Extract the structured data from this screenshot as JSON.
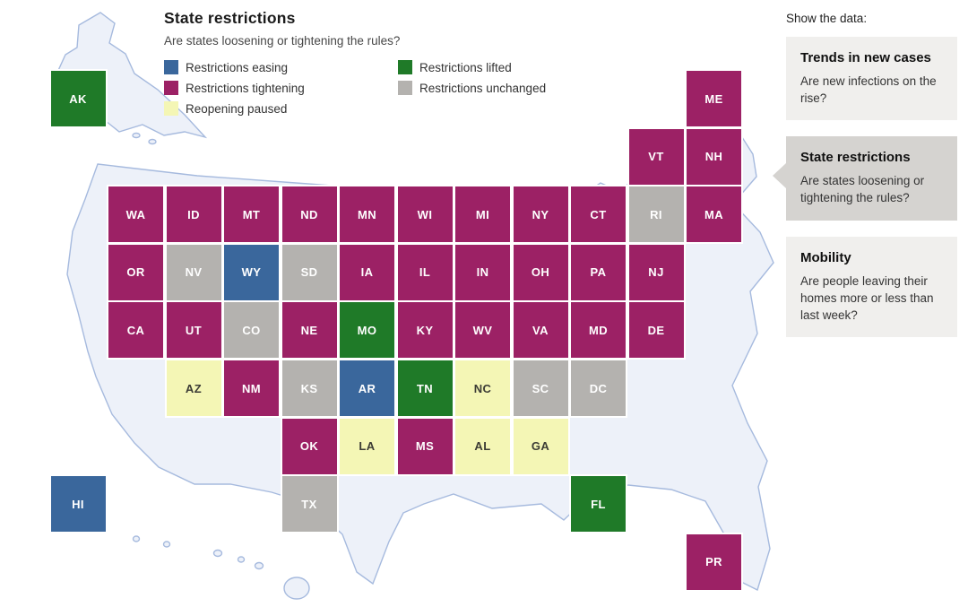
{
  "header": {
    "title": "State restrictions",
    "subtitle": "Are states loosening or tightening the rules?"
  },
  "legend": {
    "items": [
      {
        "key": "easing",
        "label": "Restrictions easing"
      },
      {
        "key": "tightening",
        "label": "Restrictions tightening"
      },
      {
        "key": "paused",
        "label": "Reopening paused"
      },
      {
        "key": "lifted",
        "label": "Restrictions lifted"
      },
      {
        "key": "unchanged",
        "label": "Restrictions unchanged"
      }
    ]
  },
  "colors": {
    "easing": "#3a679c",
    "tightening": "#9c2165",
    "paused": "#f4f6b5",
    "lifted": "#1f7a28",
    "unchanged": "#b4b2af",
    "map_fill": "#edf1f9",
    "map_stroke": "#a6bade",
    "card_bg": "#f0efed",
    "card_selected_bg": "#d5d3d0"
  },
  "sidebar": {
    "label": "Show the data:",
    "cards": [
      {
        "title": "Trends in new cases",
        "body": "Are new infections on the rise?",
        "selected": false
      },
      {
        "title": "State restrictions",
        "body": "Are states loosening or tightening the rules?",
        "selected": true
      },
      {
        "title": "Mobility",
        "body": "Are people leaving their homes more or less than last week?",
        "selected": false
      }
    ]
  },
  "map": {
    "tiles": [
      {
        "abbr": "AK",
        "row": 0,
        "col": -1,
        "status": "lifted"
      },
      {
        "abbr": "ME",
        "row": 0,
        "col": 10,
        "status": "tightening"
      },
      {
        "abbr": "VT",
        "row": 1,
        "col": 9,
        "status": "tightening"
      },
      {
        "abbr": "NH",
        "row": 1,
        "col": 10,
        "status": "tightening"
      },
      {
        "abbr": "WA",
        "row": 2,
        "col": 0,
        "status": "tightening"
      },
      {
        "abbr": "ID",
        "row": 2,
        "col": 1,
        "status": "tightening"
      },
      {
        "abbr": "MT",
        "row": 2,
        "col": 2,
        "status": "tightening"
      },
      {
        "abbr": "ND",
        "row": 2,
        "col": 3,
        "status": "tightening"
      },
      {
        "abbr": "MN",
        "row": 2,
        "col": 4,
        "status": "tightening"
      },
      {
        "abbr": "WI",
        "row": 2,
        "col": 5,
        "status": "tightening"
      },
      {
        "abbr": "MI",
        "row": 2,
        "col": 6,
        "status": "tightening"
      },
      {
        "abbr": "NY",
        "row": 2,
        "col": 7,
        "status": "tightening"
      },
      {
        "abbr": "CT",
        "row": 2,
        "col": 8,
        "status": "tightening"
      },
      {
        "abbr": "RI",
        "row": 2,
        "col": 9,
        "status": "unchanged"
      },
      {
        "abbr": "MA",
        "row": 2,
        "col": 10,
        "status": "tightening"
      },
      {
        "abbr": "OR",
        "row": 3,
        "col": 0,
        "status": "tightening"
      },
      {
        "abbr": "NV",
        "row": 3,
        "col": 1,
        "status": "unchanged"
      },
      {
        "abbr": "WY",
        "row": 3,
        "col": 2,
        "status": "easing"
      },
      {
        "abbr": "SD",
        "row": 3,
        "col": 3,
        "status": "unchanged"
      },
      {
        "abbr": "IA",
        "row": 3,
        "col": 4,
        "status": "tightening"
      },
      {
        "abbr": "IL",
        "row": 3,
        "col": 5,
        "status": "tightening"
      },
      {
        "abbr": "IN",
        "row": 3,
        "col": 6,
        "status": "tightening"
      },
      {
        "abbr": "OH",
        "row": 3,
        "col": 7,
        "status": "tightening"
      },
      {
        "abbr": "PA",
        "row": 3,
        "col": 8,
        "status": "tightening"
      },
      {
        "abbr": "NJ",
        "row": 3,
        "col": 9,
        "status": "tightening"
      },
      {
        "abbr": "CA",
        "row": 4,
        "col": 0,
        "status": "tightening"
      },
      {
        "abbr": "UT",
        "row": 4,
        "col": 1,
        "status": "tightening"
      },
      {
        "abbr": "CO",
        "row": 4,
        "col": 2,
        "status": "unchanged"
      },
      {
        "abbr": "NE",
        "row": 4,
        "col": 3,
        "status": "tightening"
      },
      {
        "abbr": "MO",
        "row": 4,
        "col": 4,
        "status": "lifted"
      },
      {
        "abbr": "KY",
        "row": 4,
        "col": 5,
        "status": "tightening"
      },
      {
        "abbr": "WV",
        "row": 4,
        "col": 6,
        "status": "tightening"
      },
      {
        "abbr": "VA",
        "row": 4,
        "col": 7,
        "status": "tightening"
      },
      {
        "abbr": "MD",
        "row": 4,
        "col": 8,
        "status": "tightening"
      },
      {
        "abbr": "DE",
        "row": 4,
        "col": 9,
        "status": "tightening"
      },
      {
        "abbr": "AZ",
        "row": 5,
        "col": 1,
        "status": "paused"
      },
      {
        "abbr": "NM",
        "row": 5,
        "col": 2,
        "status": "tightening"
      },
      {
        "abbr": "KS",
        "row": 5,
        "col": 3,
        "status": "unchanged"
      },
      {
        "abbr": "AR",
        "row": 5,
        "col": 4,
        "status": "easing"
      },
      {
        "abbr": "TN",
        "row": 5,
        "col": 5,
        "status": "lifted"
      },
      {
        "abbr": "NC",
        "row": 5,
        "col": 6,
        "status": "paused"
      },
      {
        "abbr": "SC",
        "row": 5,
        "col": 7,
        "status": "unchanged"
      },
      {
        "abbr": "DC",
        "row": 5,
        "col": 8,
        "status": "unchanged"
      },
      {
        "abbr": "OK",
        "row": 6,
        "col": 3,
        "status": "tightening"
      },
      {
        "abbr": "LA",
        "row": 6,
        "col": 4,
        "status": "paused"
      },
      {
        "abbr": "MS",
        "row": 6,
        "col": 5,
        "status": "tightening"
      },
      {
        "abbr": "AL",
        "row": 6,
        "col": 6,
        "status": "paused"
      },
      {
        "abbr": "GA",
        "row": 6,
        "col": 7,
        "status": "paused"
      },
      {
        "abbr": "TX",
        "row": 7,
        "col": 3,
        "status": "unchanged"
      },
      {
        "abbr": "FL",
        "row": 7,
        "col": 8,
        "status": "lifted"
      },
      {
        "abbr": "HI",
        "row": 7,
        "col": -1,
        "status": "easing"
      },
      {
        "abbr": "PR",
        "row": 8,
        "col": 10,
        "status": "tightening"
      }
    ]
  },
  "chart_data": {
    "type": "heatmap",
    "subtype": "tile-grid-cartogram",
    "title": "State restrictions",
    "subtitle": "Are states loosening or tightening the rules?",
    "legend_position": "top-left, two columns",
    "categories": [
      "Restrictions easing",
      "Restrictions tightening",
      "Reopening paused",
      "Restrictions lifted",
      "Restrictions unchanged"
    ],
    "groups": {
      "Restrictions easing": [
        "WY",
        "AR",
        "HI"
      ],
      "Restrictions tightening": [
        "ME",
        "VT",
        "NH",
        "WA",
        "ID",
        "MT",
        "ND",
        "MN",
        "WI",
        "MI",
        "NY",
        "CT",
        "MA",
        "OR",
        "IA",
        "IL",
        "IN",
        "OH",
        "PA",
        "NJ",
        "CA",
        "UT",
        "NE",
        "KY",
        "WV",
        "VA",
        "MD",
        "DE",
        "NM",
        "OK",
        "MS",
        "PR"
      ],
      "Reopening paused": [
        "AZ",
        "NC",
        "LA",
        "AL",
        "GA"
      ],
      "Restrictions lifted": [
        "AK",
        "MO",
        "TN",
        "FL"
      ],
      "Restrictions unchanged": [
        "RI",
        "NV",
        "SD",
        "CO",
        "KS",
        "SC",
        "DC",
        "TX"
      ]
    }
  }
}
